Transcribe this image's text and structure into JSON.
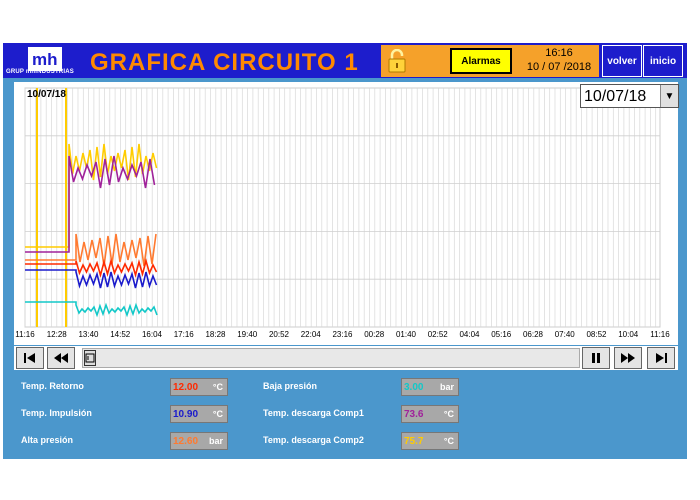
{
  "header": {
    "logo_text": "GRUP mhINDUSTRIAS",
    "title": "GRAFICA CIRCUITO 1",
    "alarm_button": "Alarmas",
    "time": "16:16",
    "date": "10 / 07 /2018",
    "back_button": "volver",
    "home_button": "inicio"
  },
  "chart": {
    "date_label": "10/07/18",
    "date_select": "10/07/18",
    "time_ticks": [
      "11:16",
      "12:28",
      "13:40",
      "14:52",
      "16:04",
      "17:16",
      "18:28",
      "19:40",
      "20:52",
      "22:04",
      "23:16",
      "00:28",
      "01:40",
      "02:52",
      "04:04",
      "05:16",
      "06:28",
      "07:40",
      "08:52",
      "10:04",
      "11:16"
    ],
    "colors": {
      "retorno": "#ff2a00",
      "impulsion": "#1a1acc",
      "alta": "#ff7a30",
      "baja": "#12c8c8",
      "comp1": "#a0229a",
      "comp2": "#ffcc00",
      "marker": "#ffcc00"
    }
  },
  "scroll": {
    "first_icon": "skip-to-start-icon",
    "rewind_icon": "rewind-icon",
    "pause_icon": "pause-icon",
    "forward_icon": "fast-forward-icon",
    "last_icon": "skip-to-end-icon"
  },
  "readings": {
    "retorno": {
      "label": "Temp. Retorno",
      "value": "12.00",
      "unit": "°C",
      "color": "#ff2a00"
    },
    "impulsion": {
      "label": "Temp. Impulsión",
      "value": "10.90",
      "unit": "°C",
      "color": "#1a1acc"
    },
    "alta": {
      "label": "Alta presión",
      "value": "12.60",
      "unit": "bar",
      "color": "#ff7a30"
    },
    "baja": {
      "label": "Baja presión",
      "value": "3.00",
      "unit": "bar",
      "color": "#12c8c8"
    },
    "comp1": {
      "label": "Temp. descarga Comp1",
      "value": "73.6",
      "unit": "°C",
      "color": "#a0229a"
    },
    "comp2": {
      "label": "Temp. descarga Comp2",
      "value": "75.7",
      "unit": "°C",
      "color": "#ffcc00"
    }
  }
}
